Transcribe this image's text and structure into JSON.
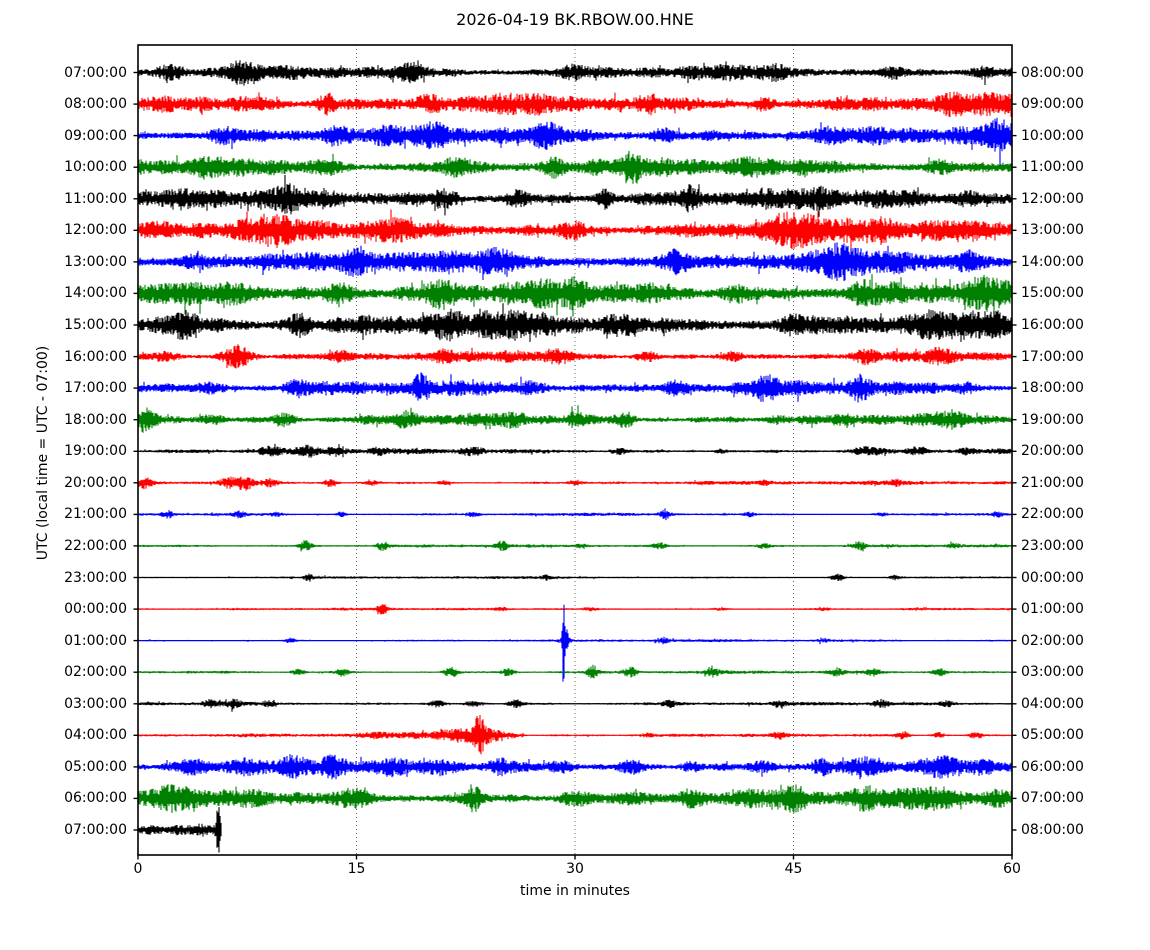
{
  "title": "2026-04-19 BK.RBOW.00.HNE",
  "x_axis": {
    "label": "time in minutes",
    "ticks": [
      0,
      15,
      30,
      45,
      60
    ],
    "grid_minutes": [
      15,
      30,
      45
    ]
  },
  "y_axis": {
    "label": "UTC (local time = UTC - 07:00)"
  },
  "palette": {
    "black": "#000000",
    "red": "#ff0000",
    "blue": "#0000ff",
    "green": "#008000",
    "frame": "#000000",
    "grid": "#444444",
    "background": "#ffffff"
  },
  "chart_data": {
    "type": "line",
    "subtype": "helicorder_dayplot",
    "station": "BK.RBOW.00.HNE",
    "date": "2026-04-19",
    "minutes_per_row": 60,
    "xlim": [
      0,
      60
    ],
    "color_cycle": [
      "black",
      "red",
      "blue",
      "green"
    ],
    "rows": [
      {
        "utc": "07:00:00",
        "end": "08:00:00",
        "color": "black",
        "base": 7,
        "mod": 0.7,
        "events": [
          [
            2.2,
            6,
            0.8
          ],
          [
            7,
            7,
            0.6
          ],
          [
            18.8,
            5,
            0.7
          ],
          [
            30,
            4,
            0.8
          ],
          [
            44,
            4,
            0.6
          ],
          [
            52,
            4,
            0.5
          ],
          [
            58,
            5,
            0.5
          ]
        ]
      },
      {
        "utc": "08:00:00",
        "end": "09:00:00",
        "color": "red",
        "base": 9,
        "mod": 0.75,
        "events": [
          [
            8,
            5,
            1.2
          ],
          [
            13,
            8,
            0.4
          ],
          [
            20,
            5,
            0.8
          ],
          [
            35,
            4,
            0.6
          ],
          [
            43,
            5,
            0.5
          ],
          [
            56,
            5,
            0.8
          ]
        ]
      },
      {
        "utc": "09:00:00",
        "end": "10:00:00",
        "color": "blue",
        "base": 9,
        "mod": 0.75,
        "events": [
          [
            6,
            5,
            0.7
          ],
          [
            13.5,
            6,
            0.6
          ],
          [
            20.5,
            7,
            0.5
          ],
          [
            28,
            5,
            0.8
          ],
          [
            36,
            5,
            0.5
          ],
          [
            47,
            4,
            0.6
          ],
          [
            59,
            6,
            0.6
          ]
        ]
      },
      {
        "utc": "10:00:00",
        "end": "11:00:00",
        "color": "green",
        "base": 9,
        "mod": 0.7,
        "events": [
          [
            5,
            5,
            0.8
          ],
          [
            13,
            6,
            0.7
          ],
          [
            22,
            6,
            0.9
          ],
          [
            28.5,
            7,
            0.5
          ],
          [
            34,
            9,
            0.3
          ],
          [
            42,
            5,
            0.6
          ],
          [
            55,
            5,
            0.7
          ]
        ]
      },
      {
        "utc": "11:00:00",
        "end": "12:00:00",
        "color": "black",
        "base": 9,
        "mod": 0.75,
        "events": [
          [
            10,
            5,
            0.7
          ],
          [
            21,
            6,
            0.6
          ],
          [
            26,
            6,
            0.5
          ],
          [
            32,
            8,
            0.4
          ],
          [
            38,
            8,
            0.4
          ],
          [
            47,
            6,
            0.6
          ],
          [
            57,
            6,
            0.5
          ]
        ]
      },
      {
        "utc": "12:00:00",
        "end": "13:00:00",
        "color": "red",
        "base": 10,
        "mod": 0.75,
        "events": [
          [
            9,
            6,
            0.8
          ],
          [
            17,
            6,
            0.7
          ],
          [
            30,
            6,
            0.6
          ],
          [
            44.5,
            12,
            1.2
          ],
          [
            51,
            6,
            0.6
          ]
        ]
      },
      {
        "utc": "13:00:00",
        "end": "14:00:00",
        "color": "blue",
        "base": 11,
        "mod": 0.7,
        "events": [
          [
            4,
            6,
            0.7
          ],
          [
            15,
            6,
            0.8
          ],
          [
            25,
            6,
            0.7
          ],
          [
            37,
            7,
            0.6
          ],
          [
            48,
            8,
            0.8
          ],
          [
            57,
            8,
            0.6
          ]
        ]
      },
      {
        "utc": "14:00:00",
        "end": "15:00:00",
        "color": "green",
        "base": 12,
        "mod": 0.7,
        "events": [
          [
            7,
            6,
            0.9
          ],
          [
            14,
            7,
            0.7
          ],
          [
            21,
            8,
            0.8
          ],
          [
            30,
            6,
            0.7
          ],
          [
            41,
            8,
            0.5
          ],
          [
            50,
            6,
            0.7
          ],
          [
            58,
            6,
            0.5
          ]
        ]
      },
      {
        "utc": "15:00:00",
        "end": "16:00:00",
        "color": "black",
        "base": 12,
        "mod": 0.75,
        "events": [
          [
            3,
            8,
            0.8
          ],
          [
            11,
            9,
            0.6
          ],
          [
            21,
            8,
            0.7
          ],
          [
            33,
            6,
            0.7
          ],
          [
            45,
            6,
            0.6
          ],
          [
            54,
            6,
            0.6
          ]
        ]
      },
      {
        "utc": "16:00:00",
        "end": "17:00:00",
        "color": "red",
        "base": 4.5,
        "mod": 0.8,
        "events": [
          [
            2,
            4,
            0.6
          ],
          [
            6.8,
            11,
            0.7
          ],
          [
            14,
            4,
            0.5
          ],
          [
            21,
            5,
            0.5
          ],
          [
            29,
            5,
            0.6
          ],
          [
            35,
            4,
            0.5
          ],
          [
            41,
            3,
            0.5
          ],
          [
            50,
            5,
            0.5
          ],
          [
            55,
            4,
            0.5
          ]
        ]
      },
      {
        "utc": "17:00:00",
        "end": "18:00:00",
        "color": "blue",
        "base": 7,
        "mod": 0.75,
        "events": [
          [
            5,
            4,
            0.7
          ],
          [
            11,
            5,
            0.6
          ],
          [
            19.4,
            9,
            0.4
          ],
          [
            27,
            5,
            0.6
          ],
          [
            37,
            6,
            0.7
          ],
          [
            43,
            7,
            0.6
          ],
          [
            49.5,
            9,
            0.5
          ],
          [
            57,
            4,
            0.5
          ]
        ]
      },
      {
        "utc": "18:00:00",
        "end": "19:00:00",
        "color": "green",
        "base": 5.5,
        "mod": 0.8,
        "events": [
          [
            0.5,
            8,
            0.5
          ],
          [
            5,
            4,
            0.6
          ],
          [
            10,
            6,
            0.5
          ],
          [
            18.5,
            5,
            0.6
          ],
          [
            26,
            3,
            0.5
          ],
          [
            30,
            5,
            0.4
          ],
          [
            33.5,
            6,
            0.4
          ],
          [
            44,
            3,
            0.5
          ],
          [
            56,
            4,
            0.5
          ]
        ]
      },
      {
        "utc": "19:00:00",
        "end": "20:00:00",
        "color": "black",
        "base": 2.8,
        "mod": 0.6,
        "events": [
          [
            9,
            3.5,
            0.6
          ],
          [
            11.5,
            4,
            0.5
          ],
          [
            13.5,
            3.5,
            0.5
          ],
          [
            16.5,
            3,
            0.4
          ],
          [
            23,
            3.5,
            0.6
          ],
          [
            33,
            2.5,
            0.4
          ],
          [
            40,
            2,
            0.3
          ],
          [
            50,
            4,
            0.7
          ],
          [
            53.5,
            3.5,
            0.5
          ],
          [
            57,
            2.5,
            0.4
          ]
        ]
      },
      {
        "utc": "20:00:00",
        "end": "21:00:00",
        "color": "red",
        "base": 2.4,
        "mod": 0.5,
        "events": [
          [
            0.4,
            5,
            0.4
          ],
          [
            6.3,
            5,
            0.5
          ],
          [
            7.4,
            6,
            0.4
          ],
          [
            9,
            3.5,
            0.4
          ],
          [
            13.2,
            3.5,
            0.3
          ],
          [
            16,
            2.5,
            0.3
          ],
          [
            21,
            2,
            0.3
          ],
          [
            30,
            2,
            0.3
          ],
          [
            43,
            2,
            0.3
          ],
          [
            52,
            2.5,
            0.3
          ]
        ]
      },
      {
        "utc": "21:00:00",
        "end": "22:00:00",
        "color": "blue",
        "base": 2.2,
        "mod": 0.4,
        "events": [
          [
            2,
            3.5,
            0.25
          ],
          [
            7,
            3,
            0.3
          ],
          [
            9.5,
            2,
            0.3
          ],
          [
            14,
            3,
            0.25
          ],
          [
            23,
            2,
            0.3
          ],
          [
            36.2,
            5,
            0.25
          ],
          [
            42,
            2,
            0.3
          ],
          [
            51,
            1.5,
            0.3
          ],
          [
            59,
            2.5,
            0.3
          ]
        ]
      },
      {
        "utc": "22:00:00",
        "end": "23:00:00",
        "color": "green",
        "base": 2.2,
        "mod": 0.4,
        "events": [
          [
            11.5,
            5,
            0.3
          ],
          [
            16.8,
            4,
            0.3
          ],
          [
            25,
            4,
            0.3
          ],
          [
            30.5,
            2.5,
            0.3
          ],
          [
            35.8,
            3.5,
            0.3
          ],
          [
            43,
            2.5,
            0.3
          ],
          [
            49.5,
            3.5,
            0.3
          ],
          [
            56,
            2,
            0.3
          ]
        ]
      },
      {
        "utc": "23:00:00",
        "end": "00:00:00",
        "color": "black",
        "base": 2,
        "mod": 0.35,
        "events": [
          [
            11.7,
            3.5,
            0.2
          ],
          [
            28,
            2,
            0.25
          ],
          [
            48,
            3.5,
            0.3
          ],
          [
            52,
            2,
            0.3
          ]
        ]
      },
      {
        "utc": "00:00:00",
        "end": "01:00:00",
        "color": "red",
        "base": 2,
        "mod": 0.35,
        "events": [
          [
            16.8,
            5,
            0.25
          ],
          [
            25,
            1.5,
            0.3
          ],
          [
            31,
            1.5,
            0.3
          ],
          [
            40,
            1.5,
            0.3
          ],
          [
            47,
            1.5,
            0.3
          ]
        ]
      },
      {
        "utc": "01:00:00",
        "end": "02:00:00",
        "color": "blue",
        "base": 2,
        "mod": 0.35,
        "events": [
          [
            10.5,
            2.5,
            0.25
          ],
          [
            29.2,
            45,
            0.07
          ],
          [
            29.35,
            12,
            0.15
          ],
          [
            36,
            3,
            0.3
          ],
          [
            47,
            1.5,
            0.3
          ]
        ]
      },
      {
        "utc": "02:00:00",
        "end": "03:00:00",
        "color": "green",
        "base": 2.3,
        "mod": 0.4,
        "events": [
          [
            11,
            3,
            0.3
          ],
          [
            14,
            4,
            0.3
          ],
          [
            21.5,
            4.5,
            0.35
          ],
          [
            25.4,
            4,
            0.3
          ],
          [
            31.2,
            6,
            0.25
          ],
          [
            33.8,
            5,
            0.3
          ],
          [
            39.4,
            4.5,
            0.3
          ],
          [
            48,
            3.5,
            0.3
          ],
          [
            50.5,
            3.5,
            0.3
          ],
          [
            55,
            4,
            0.3
          ]
        ]
      },
      {
        "utc": "03:00:00",
        "end": "04:00:00",
        "color": "black",
        "base": 2.3,
        "mod": 0.45,
        "events": [
          [
            5,
            3.5,
            0.4
          ],
          [
            6.6,
            4,
            0.35
          ],
          [
            9,
            2.5,
            0.3
          ],
          [
            20.5,
            3.5,
            0.4
          ],
          [
            23,
            3,
            0.4
          ],
          [
            26,
            3.5,
            0.4
          ],
          [
            36.5,
            3.5,
            0.3
          ],
          [
            44,
            2.5,
            0.3
          ],
          [
            51,
            3.5,
            0.4
          ],
          [
            55.5,
            2.5,
            0.3
          ]
        ]
      },
      {
        "utc": "04:00:00",
        "end": "05:00:00",
        "color": "red",
        "base": 2.3,
        "mod": 0.45,
        "events": [
          [
            16.5,
            2.5,
            0.8
          ],
          [
            19,
            3,
            0.8
          ],
          [
            21,
            4.5,
            0.6
          ],
          [
            22.3,
            7,
            0.5
          ],
          [
            23.4,
            18,
            0.3
          ],
          [
            24.2,
            6,
            0.5
          ],
          [
            25.5,
            3,
            0.6
          ],
          [
            35,
            2,
            0.3
          ],
          [
            44,
            2.5,
            0.3
          ],
          [
            52.5,
            3.5,
            0.3
          ],
          [
            55,
            2.5,
            0.3
          ],
          [
            57.5,
            3,
            0.3
          ]
        ]
      },
      {
        "utc": "05:00:00",
        "end": "06:00:00",
        "color": "blue",
        "base": 6,
        "mod": 0.8,
        "events": [
          [
            3.5,
            4,
            0.7
          ],
          [
            7.5,
            6,
            0.8
          ],
          [
            10.5,
            7,
            0.6
          ],
          [
            13.5,
            6,
            0.7
          ],
          [
            17,
            4,
            0.6
          ],
          [
            21,
            4,
            0.6
          ],
          [
            25,
            4.5,
            0.6
          ],
          [
            29,
            5,
            0.7
          ],
          [
            34,
            5,
            0.6
          ],
          [
            38,
            4,
            0.5
          ],
          [
            43,
            4,
            0.6
          ],
          [
            47,
            4,
            0.5
          ],
          [
            50,
            6,
            0.7
          ],
          [
            55,
            5,
            0.6
          ],
          [
            58,
            4,
            0.5
          ]
        ]
      },
      {
        "utc": "06:00:00",
        "end": "07:00:00",
        "color": "green",
        "base": 9,
        "mod": 0.7,
        "events": [
          [
            2,
            5,
            0.8
          ],
          [
            8,
            5,
            0.7
          ],
          [
            15,
            5,
            0.8
          ],
          [
            23,
            10,
            0.4
          ],
          [
            30,
            5,
            0.7
          ],
          [
            38,
            5,
            0.7
          ],
          [
            45,
            5,
            0.6
          ],
          [
            50,
            5,
            0.6
          ],
          [
            55,
            6,
            0.7
          ],
          [
            59,
            5,
            0.5
          ]
        ]
      },
      {
        "utc": "07:00:00",
        "end": "08:00:00",
        "color": "black",
        "base": 5,
        "mod": 0.7,
        "data_end_minute": 5.75,
        "events": [
          [
            1,
            3,
            0.5
          ],
          [
            3,
            4,
            0.6
          ],
          [
            4.5,
            5,
            0.5
          ],
          [
            5.5,
            24,
            0.12
          ]
        ]
      }
    ]
  }
}
